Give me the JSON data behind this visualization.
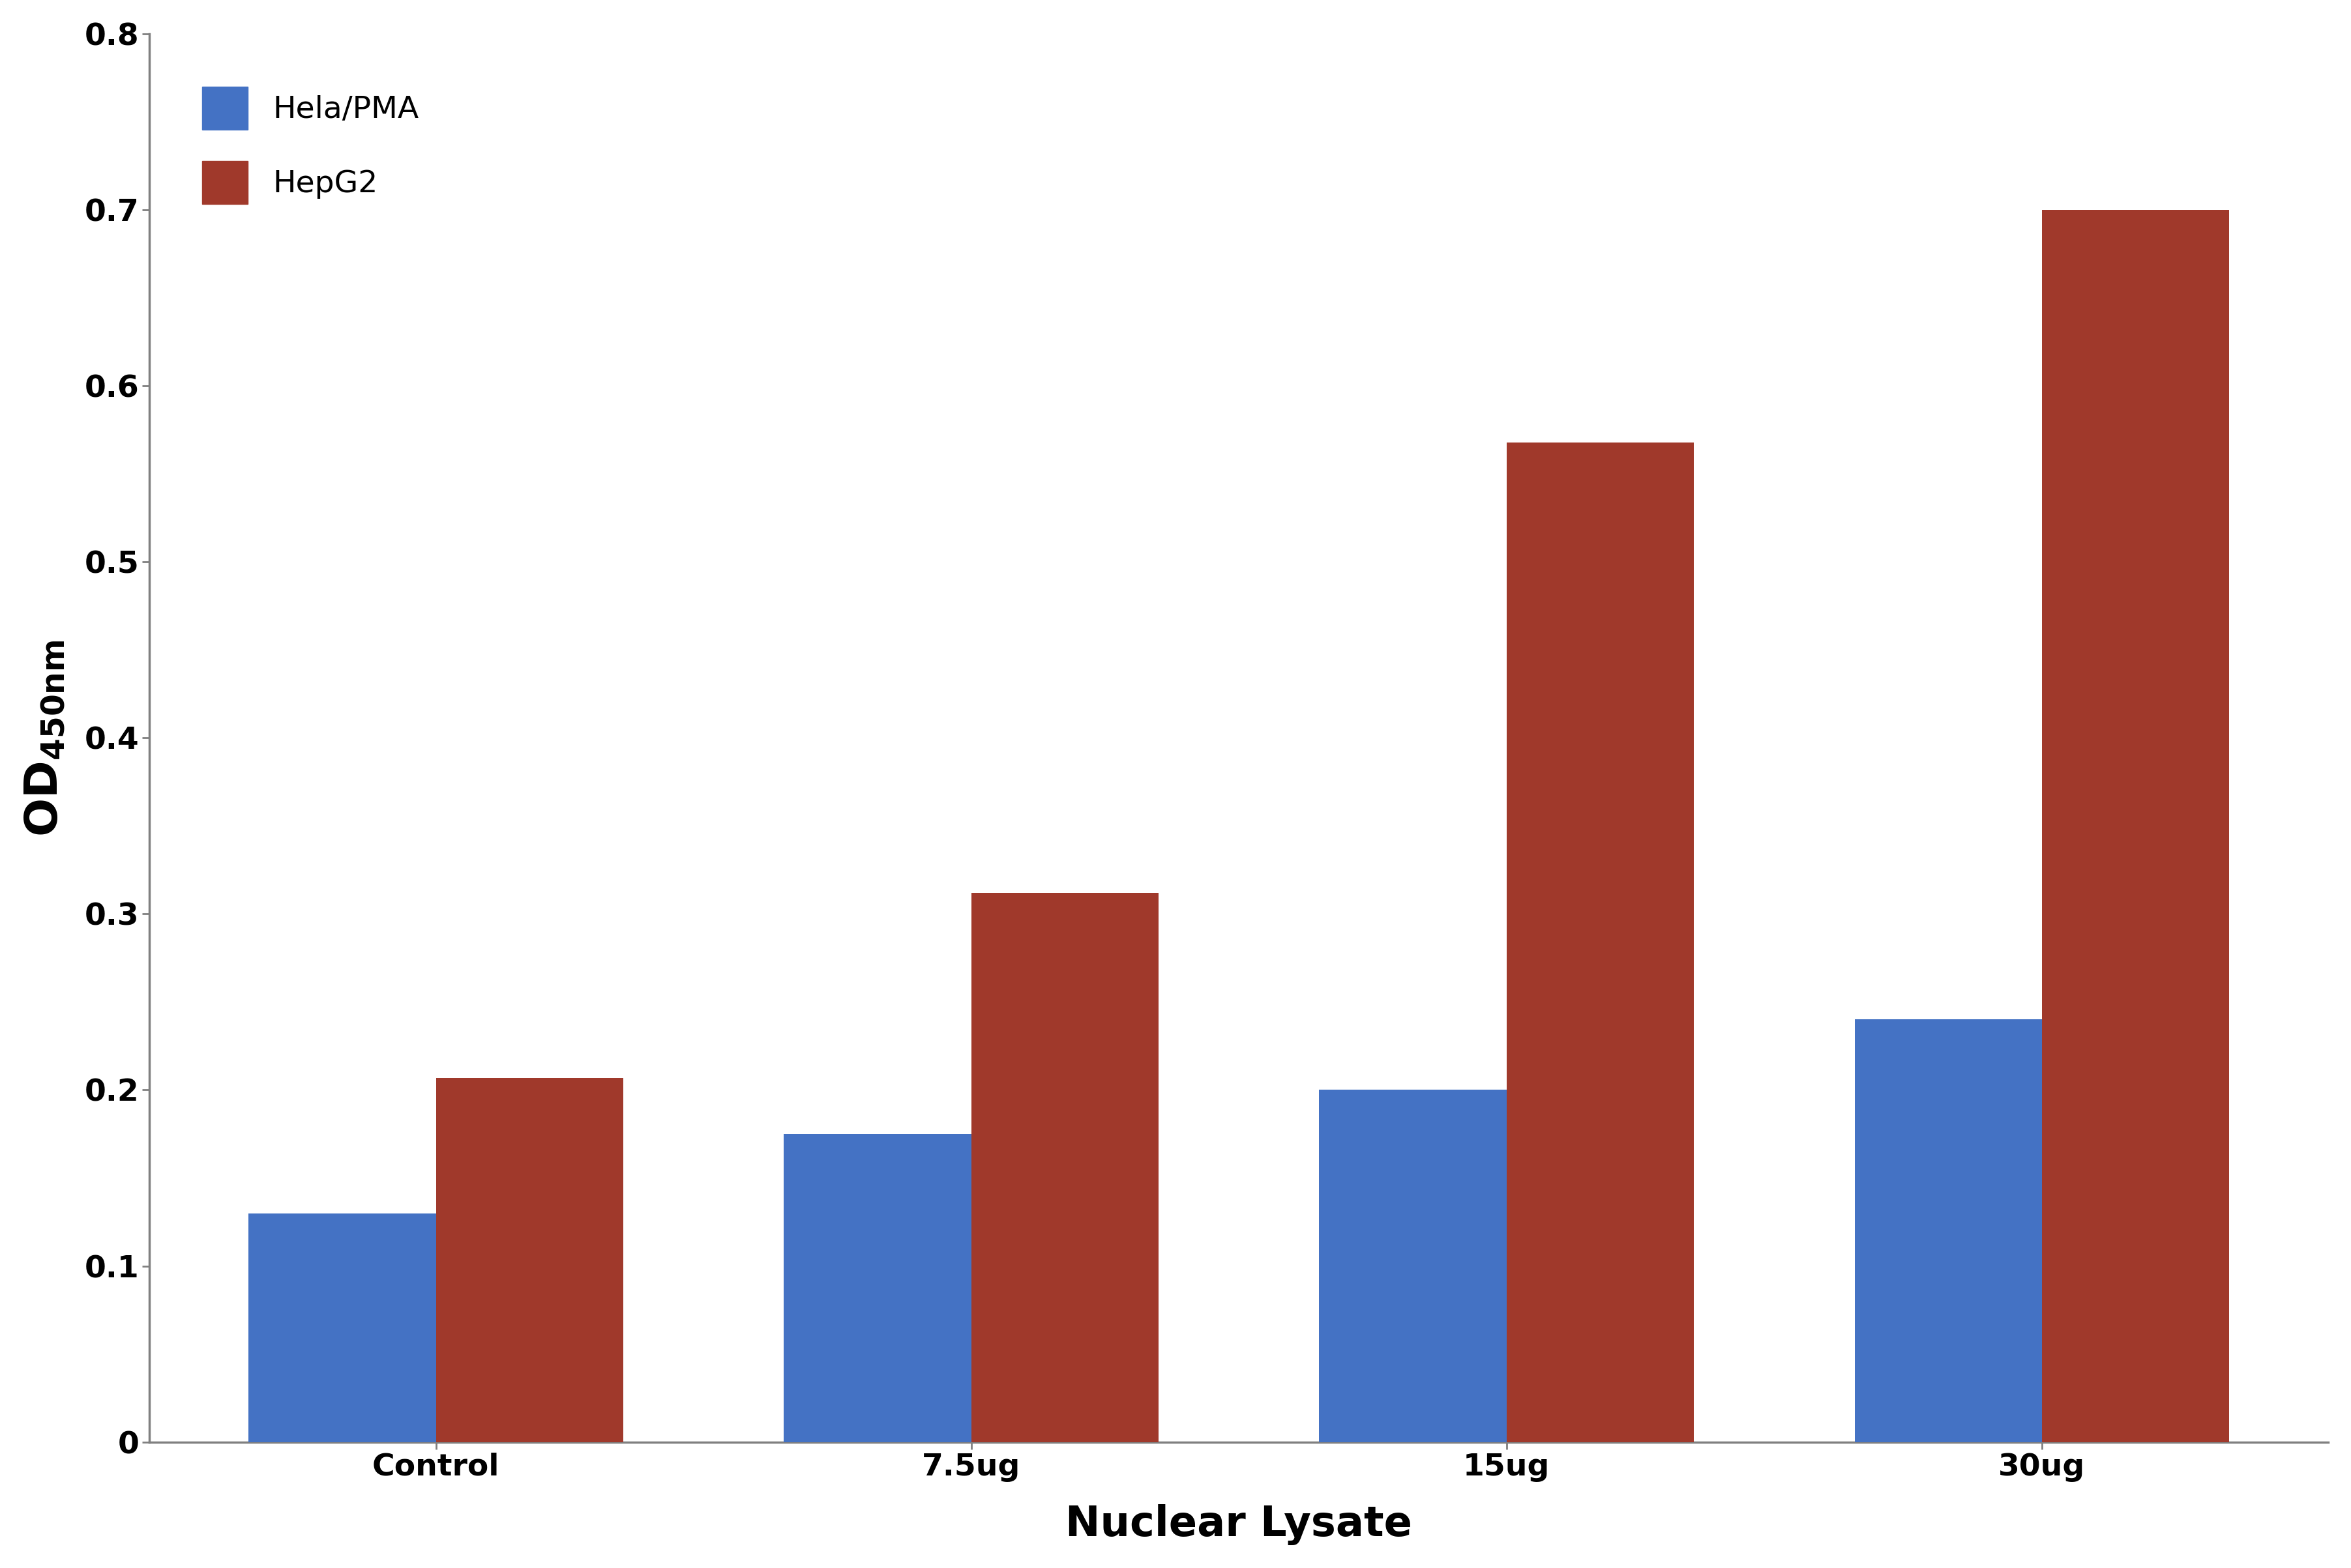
{
  "categories": [
    "Control",
    "7.5ug",
    "15ug",
    "30ug"
  ],
  "hela_pma_values": [
    0.13,
    0.175,
    0.2,
    0.24
  ],
  "hepg2_values": [
    0.207,
    0.312,
    0.568,
    0.7
  ],
  "hela_color": "#4472C4",
  "hepg2_color": "#A0392B",
  "xlabel": "Nuclear Lysate",
  "ylim": [
    0,
    0.8
  ],
  "yticks": [
    0,
    0.1,
    0.2,
    0.3,
    0.4,
    0.5,
    0.6,
    0.7,
    0.8
  ],
  "legend_hela": "Hela/PMA",
  "legend_hepg2": "HepG2",
  "bar_width": 0.35,
  "background_color": "#ffffff",
  "tick_fontsize": 34,
  "xlabel_fontsize": 46,
  "legend_fontsize": 34,
  "ylabel_od_fontsize": 50,
  "ylabel_sub_fontsize": 34,
  "spine_color": "#808080"
}
